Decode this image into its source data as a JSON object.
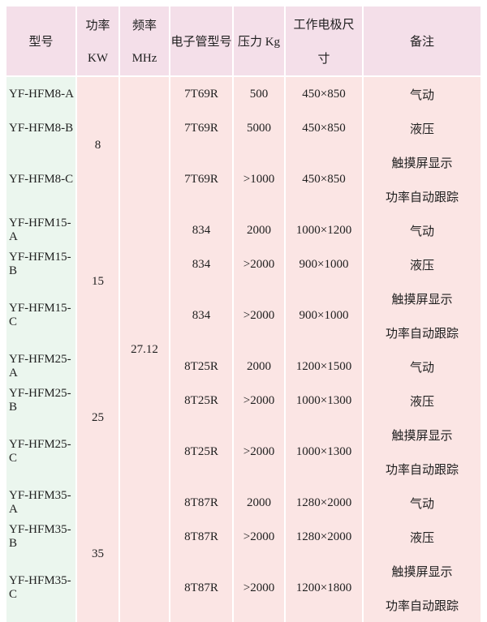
{
  "colors": {
    "header_bg": "#f4dfe9",
    "body_bg": "#fbe5e4",
    "model_col_bg": "#ebf6ee",
    "border": "#ffffff",
    "text": "#1f1f1f"
  },
  "table": {
    "header": {
      "model": "型号",
      "power_line1": "功率",
      "power_line2": "KW",
      "freq_line1": "频率",
      "freq_line2": "MHz",
      "tube": "电子管型号",
      "pressure": "压力 Kg",
      "electrode_line1": "工作电极尺",
      "electrode_line2": "寸",
      "remark": "备注"
    },
    "frequency_mhz": "27.12",
    "groups": [
      {
        "power_kw": "8",
        "rows": [
          {
            "model": "YF-HFM8-A",
            "tube": "7T69R",
            "pressure": "500",
            "electrode": "450×850",
            "remarks": [
              "气动"
            ]
          },
          {
            "model": "YF-HFM8-B",
            "tube": "7T69R",
            "pressure": "5000",
            "electrode": "450×850",
            "remarks": [
              "液压"
            ]
          },
          {
            "model": "YF-HFM8-C",
            "tube": "7T69R",
            "pressure": ">1000",
            "electrode": "450×850",
            "remarks": [
              "触摸屏显示",
              "功率自动跟踪"
            ]
          }
        ]
      },
      {
        "power_kw": "15",
        "rows": [
          {
            "model": "YF-HFM15-A",
            "tube": "834",
            "pressure": "2000",
            "electrode": "1000×1200",
            "remarks": [
              "气动"
            ]
          },
          {
            "model": "YF-HFM15-B",
            "tube": "834",
            "pressure": ">2000",
            "electrode": "900×1000",
            "remarks": [
              "液压"
            ]
          },
          {
            "model": "YF-HFM15-C",
            "tube": "834",
            "pressure": ">2000",
            "electrode": "900×1000",
            "remarks": [
              "触摸屏显示",
              "功率自动跟踪"
            ]
          }
        ]
      },
      {
        "power_kw": "25",
        "rows": [
          {
            "model": "YF-HFM25-A",
            "tube": "8T25R",
            "pressure": "2000",
            "electrode": "1200×1500",
            "remarks": [
              "气动"
            ]
          },
          {
            "model": "YF-HFM25-B",
            "tube": "8T25R",
            "pressure": ">2000",
            "electrode": "1000×1300",
            "remarks": [
              "液压"
            ]
          },
          {
            "model": "YF-HFM25-C",
            "tube": "8T25R",
            "pressure": ">2000",
            "electrode": "1000×1300",
            "remarks": [
              "触摸屏显示",
              "功率自动跟踪"
            ]
          }
        ]
      },
      {
        "power_kw": "35",
        "rows": [
          {
            "model": "YF-HFM35-A",
            "tube": "8T87R",
            "pressure": "2000",
            "electrode": "1280×2000",
            "remarks": [
              "气动"
            ]
          },
          {
            "model": "YF-HFM35-B",
            "tube": "8T87R",
            "pressure": ">2000",
            "electrode": "1280×2000",
            "remarks": [
              "液压"
            ]
          },
          {
            "model": "YF-HFM35-C",
            "tube": "8T87R",
            "pressure": ">2000",
            "electrode": "1200×1800",
            "remarks": [
              "触摸屏显示",
              "功率自动跟踪"
            ]
          }
        ]
      }
    ]
  }
}
